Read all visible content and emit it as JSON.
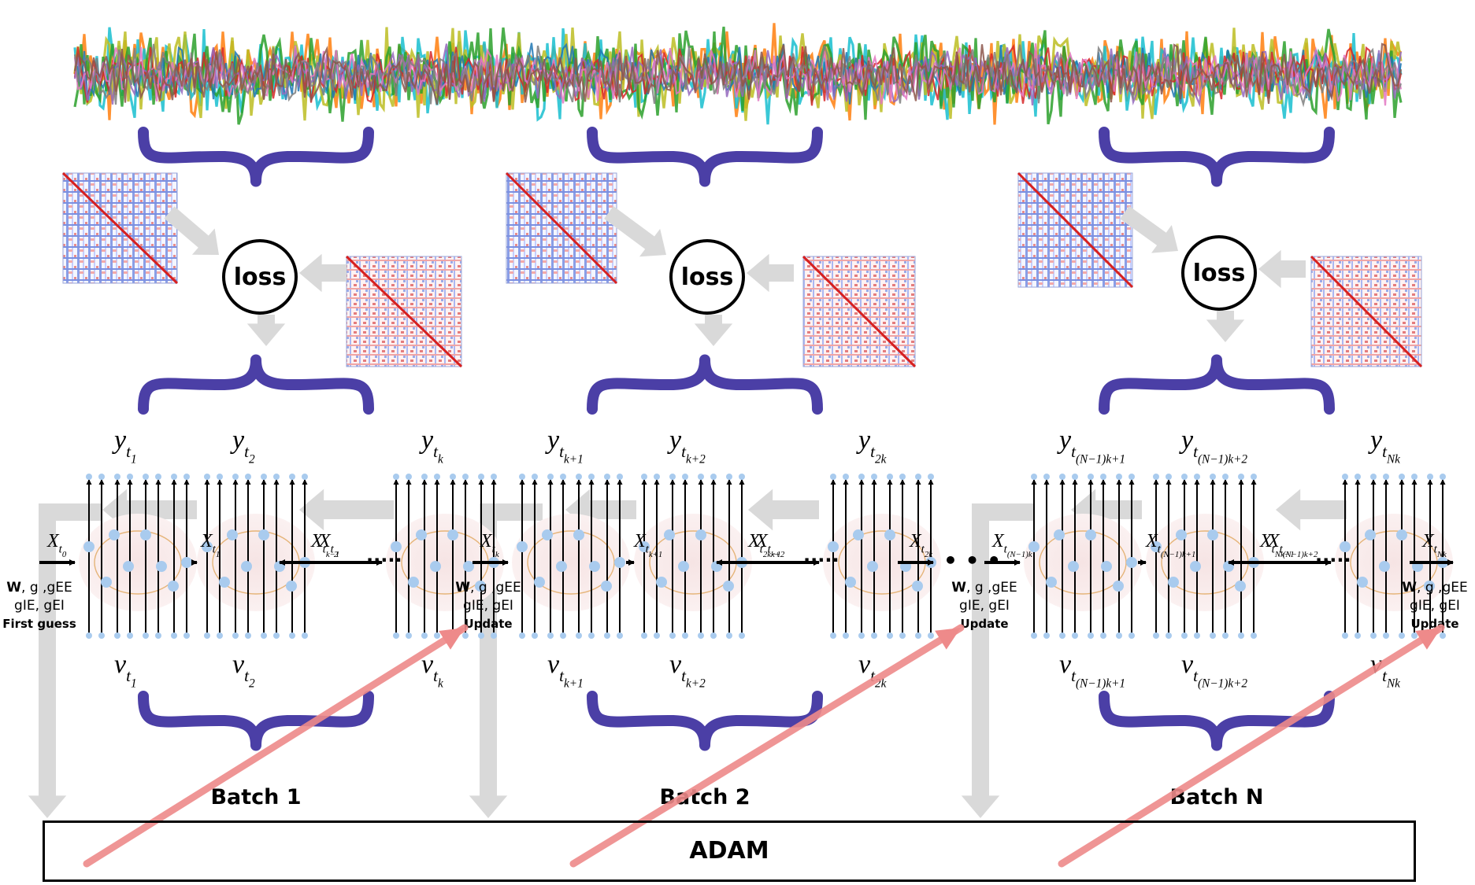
{
  "timeseries": {
    "colors": [
      "#ff7f0e",
      "#17becf",
      "#bcbd22",
      "#2ca02c",
      "#1f77b4",
      "#d62728",
      "#9467bd",
      "#e377c2",
      "#7f7f7f",
      "#8c564b"
    ]
  },
  "loss_label": "loss",
  "optimizer_label": "ADAM",
  "batches": [
    {
      "label": "Batch 1",
      "y_labels": [
        {
          "base": "y",
          "sub": "t",
          "subsub": "1"
        },
        {
          "base": "y",
          "sub": "t",
          "subsub": "2"
        },
        {
          "base": "y",
          "sub": "t",
          "subsub": "k"
        }
      ],
      "v_labels": [
        {
          "base": "v",
          "sub": "t",
          "subsub": "1"
        },
        {
          "base": "v",
          "sub": "t",
          "subsub": "2"
        },
        {
          "base": "v",
          "sub": "t",
          "subsub": "k"
        }
      ],
      "x_labels": [
        {
          "base": "X",
          "sub": "t",
          "subsub": "0"
        },
        {
          "base": "X",
          "sub": "t",
          "subsub": "1"
        },
        {
          "base": "X",
          "sub": "t",
          "subsub": "2"
        },
        {
          "base": "X",
          "sub": "t",
          "subsub": "k−1"
        }
      ],
      "params": {
        "line1_bold": "W",
        "line1_rest": ", g ,gEE",
        "line2": "gIE, gEI",
        "line3": "First guess"
      }
    },
    {
      "label": "Batch 2",
      "y_labels": [
        {
          "base": "y",
          "sub": "t",
          "subsub": "k+1"
        },
        {
          "base": "y",
          "sub": "t",
          "subsub": "k+2"
        },
        {
          "base": "y",
          "sub": "t",
          "subsub": "2k"
        }
      ],
      "v_labels": [
        {
          "base": "v",
          "sub": "t",
          "subsub": "k+1"
        },
        {
          "base": "v",
          "sub": "t",
          "subsub": "k+2"
        },
        {
          "base": "v",
          "sub": "t",
          "subsub": "2k"
        }
      ],
      "x_labels": [
        {
          "base": "X",
          "sub": "t",
          "subsub": "k"
        },
        {
          "base": "X",
          "sub": "t",
          "subsub": "k+1"
        },
        {
          "base": "X",
          "sub": "t",
          "subsub": "k+2"
        },
        {
          "base": "X",
          "sub": "t",
          "subsub": "2k−1"
        }
      ],
      "params": {
        "line1_bold": "W",
        "line1_rest": ", g ,gEE",
        "line2": "gIE, gEI",
        "line3": "Update"
      }
    },
    {
      "label": "Batch N",
      "y_labels": [
        {
          "base": "y",
          "sub": "t",
          "subsub": "(N−1)k+1"
        },
        {
          "base": "y",
          "sub": "t",
          "subsub": "(N−1)k+2"
        },
        {
          "base": "y",
          "sub": "t",
          "subsub": "Nk"
        }
      ],
      "v_labels": [
        {
          "base": "v",
          "sub": "t",
          "subsub": "(N−1)k+1"
        },
        {
          "base": "v",
          "sub": "t",
          "subsub": "(N−1)k+2"
        },
        {
          "base": "v",
          "sub": "t",
          "subsub": "Nk"
        }
      ],
      "x_labels": [
        {
          "base": "X",
          "sub": "t",
          "subsub": "(N−1)k"
        },
        {
          "base": "X",
          "sub": "t",
          "subsub": "(N−1)k+1"
        },
        {
          "base": "X",
          "sub": "t",
          "subsub": "(N−1)k+2"
        },
        {
          "base": "X",
          "sub": "t",
          "subsub": "Nk−1"
        }
      ],
      "params": {
        "line1_bold": "W",
        "line1_rest": ", g ,gEE",
        "line2": "gIE, gEI",
        "line3": "Update"
      }
    }
  ],
  "x_tail_labels": [
    {
      "base": "X",
      "sub": "t",
      "subsub": "2k"
    },
    {
      "base": "X",
      "sub": "t",
      "subsub": "Nk"
    }
  ],
  "final_params": {
    "line1_bold": "W",
    "line1_rest": ", g ,gEE",
    "line2": "gIE, gEI",
    "line3": "Update"
  },
  "colors": {
    "brace": "#4b3fa6",
    "gray_arrow": "#d9d9d9",
    "red_arrow": "#ee8a8a",
    "node": "#a9cbee"
  }
}
